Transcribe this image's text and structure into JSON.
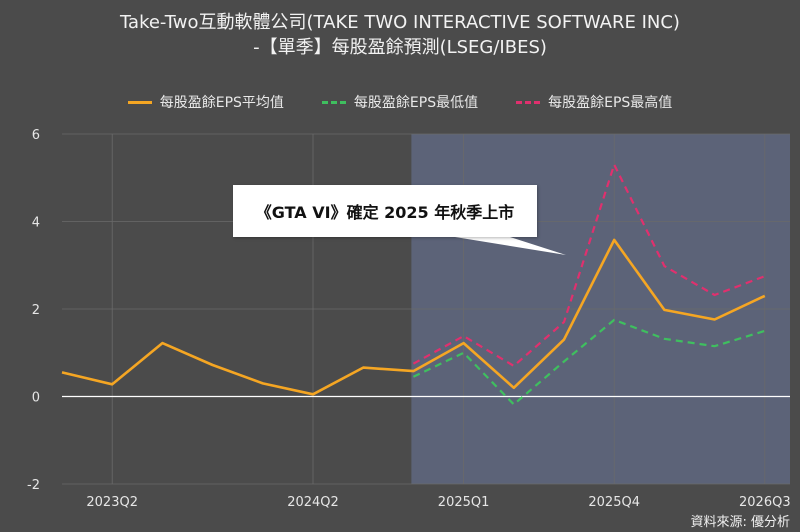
{
  "title_line1": "Take-Two互動軟體公司(TAKE TWO INTERACTIVE SOFTWARE INC)",
  "title_line2": "-【單季】每股盈餘預測(LSEG/IBES)",
  "source": "資料來源: 優分析",
  "annotation": "《GTA VI》確定 2025 年秋季上市",
  "colors": {
    "avg": "#f5a623",
    "low": "#3fbf5f",
    "high": "#e0306e",
    "forecast_bg": "#5c6378"
  },
  "chart_data": {
    "type": "line",
    "x": [
      "2023Q1",
      "2023Q2",
      "2023Q3",
      "2023Q4",
      "2024Q1",
      "2024Q2",
      "2024Q3",
      "2024Q4",
      "2025Q1",
      "2025Q2",
      "2025Q3",
      "2025Q4",
      "2026Q1",
      "2026Q2",
      "2026Q3"
    ],
    "xticks": [
      "2023Q2",
      "2024Q2",
      "2025Q1",
      "2025Q4",
      "2026Q3"
    ],
    "yticks": [
      "-2",
      "0",
      "2",
      "4",
      "6"
    ],
    "ylim": [
      -2,
      6
    ],
    "forecast_start": "2024Q4",
    "series": [
      {
        "key": "avg",
        "name": "每股盈餘EPS平均值",
        "values": [
          0.55,
          0.28,
          1.22,
          0.72,
          0.3,
          0.05,
          0.66,
          0.58,
          1.22,
          0.2,
          1.3,
          3.58,
          1.98,
          1.76,
          2.3
        ]
      },
      {
        "key": "low",
        "name": "每股盈餘EPS最低值",
        "values": [
          null,
          null,
          null,
          null,
          null,
          null,
          null,
          0.45,
          1.0,
          -0.18,
          0.8,
          1.75,
          1.32,
          1.15,
          1.5
        ]
      },
      {
        "key": "high",
        "name": "每股盈餘EPS最高值",
        "values": [
          null,
          null,
          null,
          null,
          null,
          null,
          null,
          0.75,
          1.38,
          0.7,
          1.7,
          5.3,
          2.98,
          2.32,
          2.75
        ]
      }
    ]
  }
}
